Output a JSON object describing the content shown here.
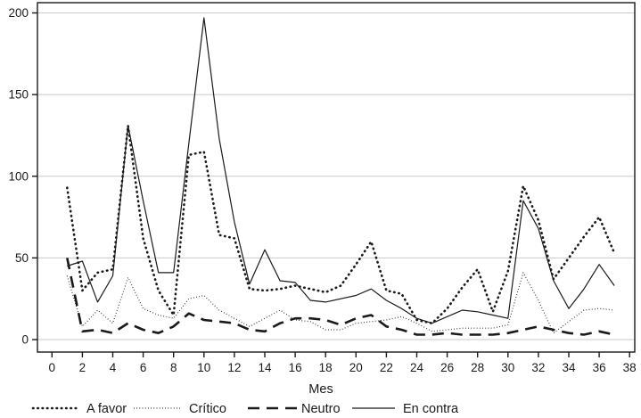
{
  "chart_data": {
    "type": "line",
    "title": "",
    "xlabel": "Mes",
    "ylabel": "",
    "x_ticks": [
      0,
      2,
      4,
      6,
      8,
      10,
      12,
      14,
      16,
      18,
      20,
      22,
      24,
      26,
      28,
      30,
      32,
      34,
      36,
      38
    ],
    "y_ticks": [
      0,
      50,
      100,
      150,
      200
    ],
    "xlim": [
      -1,
      38.4
    ],
    "ylim": [
      -7.5,
      206.5
    ],
    "grid": "horizontal-only",
    "legend_position": "bottom",
    "line_color": "#1a1a1a",
    "grid_color": "#c9c9c9",
    "frame_color": "#1a1a1a",
    "x": [
      1,
      2,
      3,
      4,
      5,
      6,
      7,
      8,
      9,
      10,
      11,
      12,
      13,
      14,
      15,
      16,
      17,
      18,
      19,
      20,
      21,
      22,
      23,
      24,
      25,
      26,
      27,
      28,
      29,
      30,
      31,
      32,
      33,
      34,
      35,
      36,
      37
    ],
    "series": [
      {
        "name": "A favor",
        "style": "bold-dotted",
        "values": [
          93,
          30,
          41,
          43,
          131,
          62,
          30,
          15,
          113,
          115,
          64,
          62,
          31,
          30,
          31,
          33,
          31,
          29,
          33,
          46,
          60,
          30,
          28,
          12,
          10,
          19,
          32,
          43,
          17,
          42,
          94,
          73,
          37,
          50,
          63,
          75,
          53
        ]
      },
      {
        "name": "Crítico",
        "style": "fine-dotted",
        "values": [
          39,
          8,
          18,
          10,
          38,
          19,
          15,
          13,
          25,
          27,
          18,
          13,
          8,
          13,
          18,
          12,
          11,
          6,
          6,
          10,
          11,
          12,
          14,
          10,
          5,
          6,
          7,
          7,
          7,
          9,
          41,
          24,
          4,
          11,
          18,
          19,
          18
        ]
      },
      {
        "name": "Neutro",
        "style": "long-dash",
        "values": [
          50,
          5,
          6,
          4,
          10,
          6,
          4,
          8,
          16,
          12,
          11,
          10,
          6,
          5,
          10,
          13,
          13,
          12,
          9,
          13,
          15,
          8,
          6,
          3,
          3,
          4,
          3,
          3,
          3,
          4,
          6,
          8,
          6,
          4,
          3,
          5,
          3
        ]
      },
      {
        "name": "En contra",
        "style": "solid",
        "values": [
          45,
          48,
          23,
          39,
          131,
          85,
          41,
          41,
          120,
          197,
          123,
          72,
          34,
          55,
          36,
          35,
          24,
          23,
          25,
          27,
          31,
          24,
          19,
          13,
          10,
          14,
          18,
          17,
          15,
          13,
          85,
          68,
          36,
          19,
          31,
          46,
          33
        ]
      }
    ]
  }
}
